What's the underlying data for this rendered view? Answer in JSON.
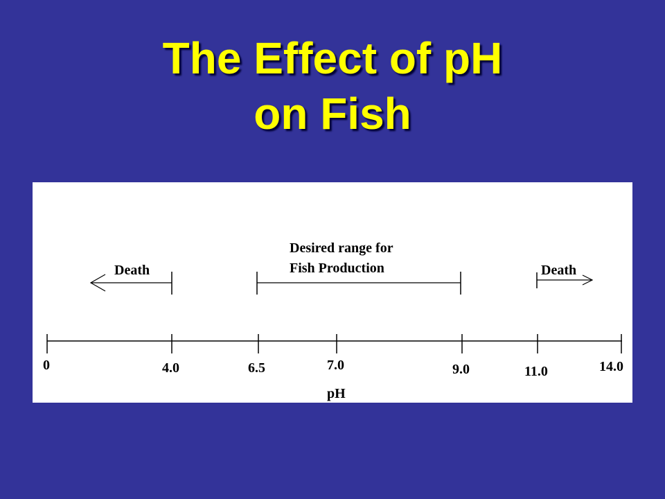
{
  "slide": {
    "title_line1": "The Effect of pH",
    "title_line2": "on Fish"
  },
  "colors": {
    "background": "#333399",
    "title": "#ffff00",
    "panel": "#ffffff",
    "ink": "#000000"
  },
  "diagram": {
    "axis_label": "pH",
    "ticks": [
      {
        "label": "0",
        "value": 0
      },
      {
        "label": "4.0",
        "value": 4.0
      },
      {
        "label": "6.5",
        "value": 6.5
      },
      {
        "label": "7.0",
        "value": 7.0
      },
      {
        "label": "9.0",
        "value": 9.0
      },
      {
        "label": "11.0",
        "value": 11.0
      },
      {
        "label": "14.0",
        "value": 14.0
      }
    ],
    "ranges": {
      "death_low": {
        "label": "Death",
        "upper_bound": 4.0,
        "direction": "left-arrow"
      },
      "desired": {
        "label_line1": "Desired range for",
        "label_line2": "Fish Production",
        "lower_bound": 6.5,
        "upper_bound": 9.0
      },
      "death_high": {
        "label": "Death",
        "lower_bound": 11.0,
        "direction": "right-arrow"
      }
    }
  }
}
